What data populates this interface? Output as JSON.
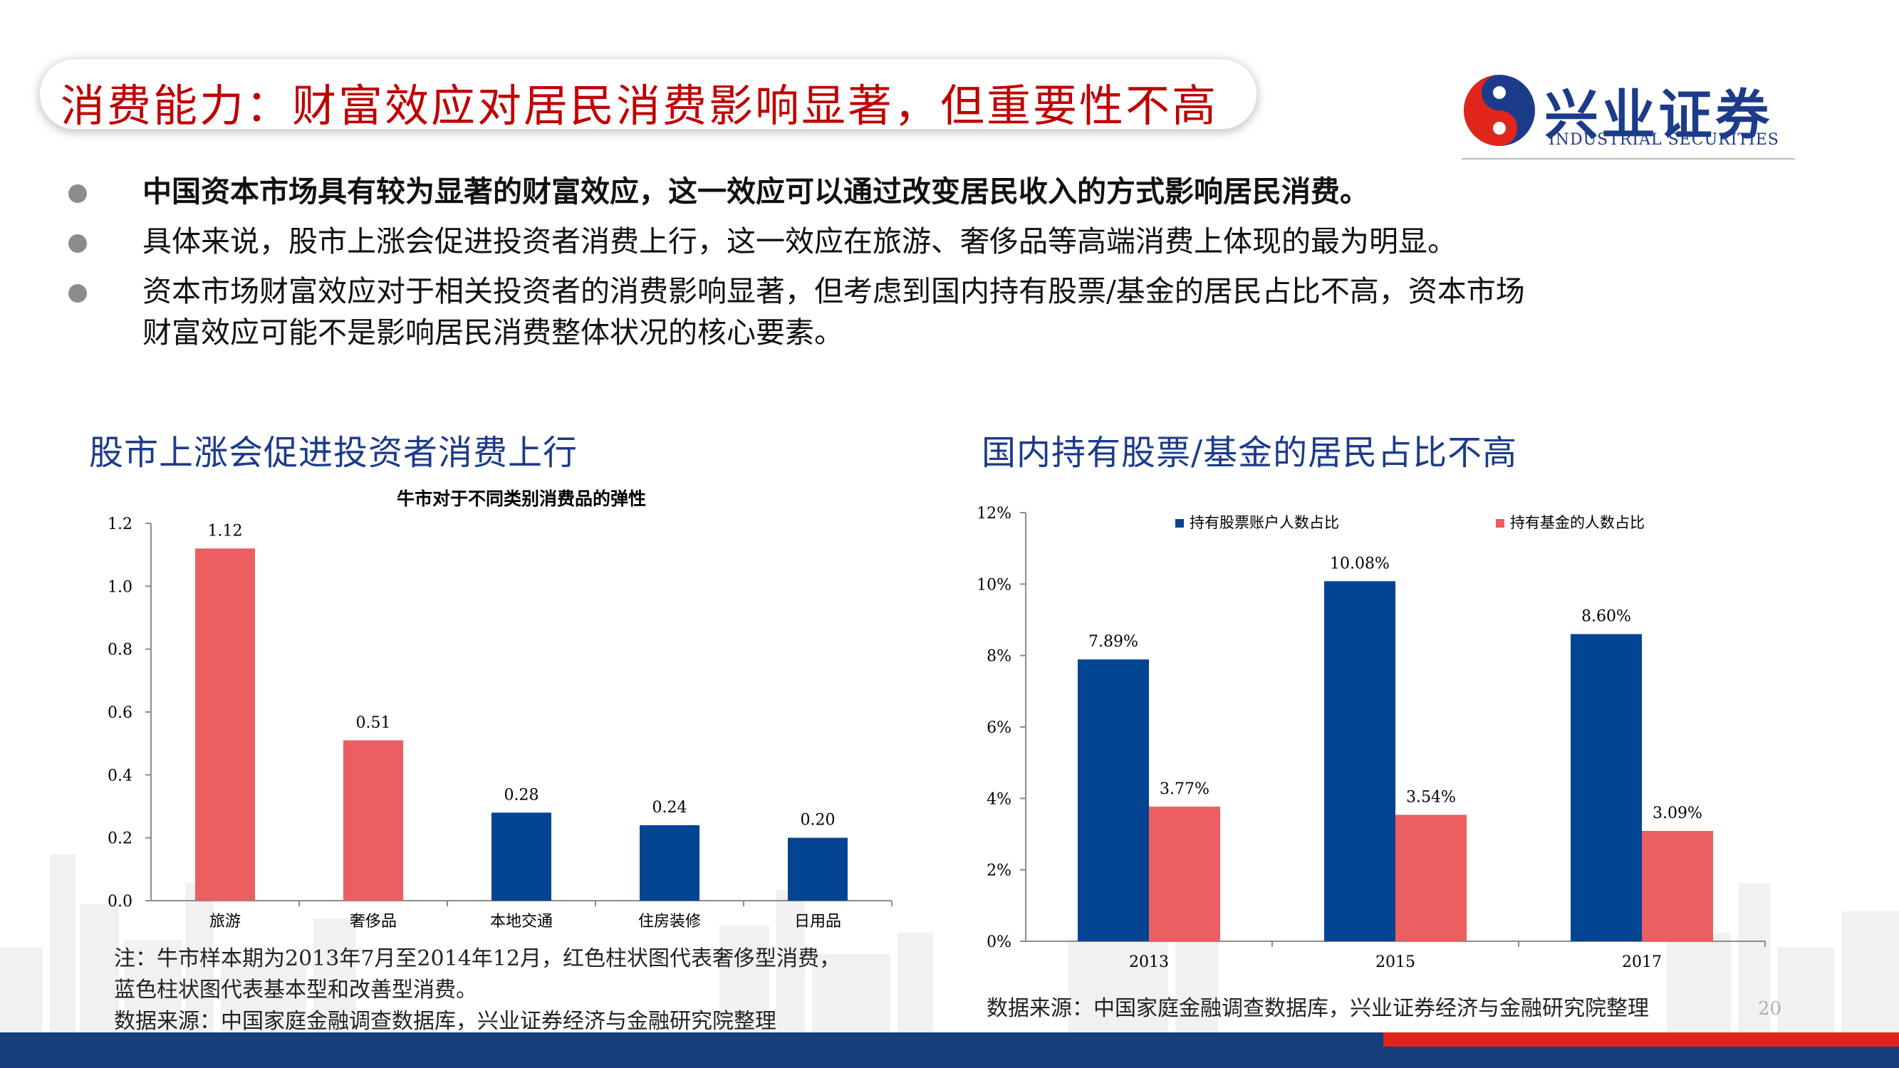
{
  "header": {
    "title": "消费能力：财富效应对居民消费影响显著，但重要性不高",
    "logo_cn": "兴业证券",
    "logo_en": "INDUSTRIAL SECURITIES"
  },
  "bullets": [
    "中国资本市场具有较为显著的财富效应，这一效应可以通过改变居民收入的方式影响居民消费。",
    "具体来说，股市上涨会促进投资者消费上行，这一效应在旅游、奢侈品等高端消费上体现的最为明显。",
    "资本市场财富效应对于相关投资者的消费影响显著，但考虑到国内持有股票/基金的居民占比不高，资本市场",
    "财富效应可能不是影响居民消费整体状况的核心要素。"
  ],
  "left_section": {
    "title": "股市上涨会促进投资者消费上行",
    "note_lines": [
      "注：牛市样本期为2013年7月至2014年12月，红色柱状图代表奢侈型消费，",
      "蓝色柱状图代表基本型和改善型消费。",
      "数据来源：中国家庭金融调查数据库，兴业证券经济与金融研究院整理"
    ]
  },
  "right_section": {
    "title": "国内持有股票/基金的居民占比不高",
    "source": "数据来源：中国家庭金融调查数据库，兴业证券经济与金融研究院整理"
  },
  "page_number": "20",
  "colors": {
    "red": "#ec5f61",
    "blue": "#034493",
    "title_red": "#c00000",
    "navy": "#1c3b8a"
  },
  "chart_data": [
    {
      "type": "bar",
      "title": "牛市对于不同类别消费品的弹性",
      "categories": [
        "旅游",
        "奢侈品",
        "本地交通",
        "住房装修",
        "日用品"
      ],
      "values": [
        1.12,
        0.51,
        0.28,
        0.24,
        0.2
      ],
      "labels": [
        "1.12",
        "0.51",
        "0.28",
        "0.24",
        "0.20"
      ],
      "bar_colors": [
        "red",
        "red",
        "blue",
        "blue",
        "blue"
      ],
      "ylim": [
        0,
        1.2
      ],
      "yticks": [
        0,
        0.2,
        0.4,
        0.6,
        0.8,
        1.0,
        1.2
      ],
      "ytick_labels": [
        "0.0",
        "0.2",
        "0.4",
        "0.6",
        "0.8",
        "1.0",
        "1.2"
      ],
      "xlabel": "",
      "ylabel": "",
      "grid": false
    },
    {
      "type": "bar",
      "title": "",
      "categories": [
        "2013",
        "2015",
        "2017"
      ],
      "series": [
        {
          "name": "持有股票账户人数占比",
          "color": "blue",
          "values": [
            7.89,
            10.08,
            8.6
          ],
          "labels": [
            "7.89%",
            "10.08%",
            "8.60%"
          ]
        },
        {
          "name": "持有基金的人数占比",
          "color": "red",
          "values": [
            3.77,
            3.54,
            3.09
          ],
          "labels": [
            "3.77%",
            "3.54%",
            "3.09%"
          ]
        }
      ],
      "ylim": [
        0,
        12
      ],
      "yticks": [
        0,
        2,
        4,
        6,
        8,
        10,
        12
      ],
      "ytick_labels": [
        "0%",
        "2%",
        "4%",
        "6%",
        "8%",
        "10%",
        "12%"
      ],
      "legend": "top",
      "xlabel": "",
      "ylabel": "",
      "grid": false
    }
  ]
}
